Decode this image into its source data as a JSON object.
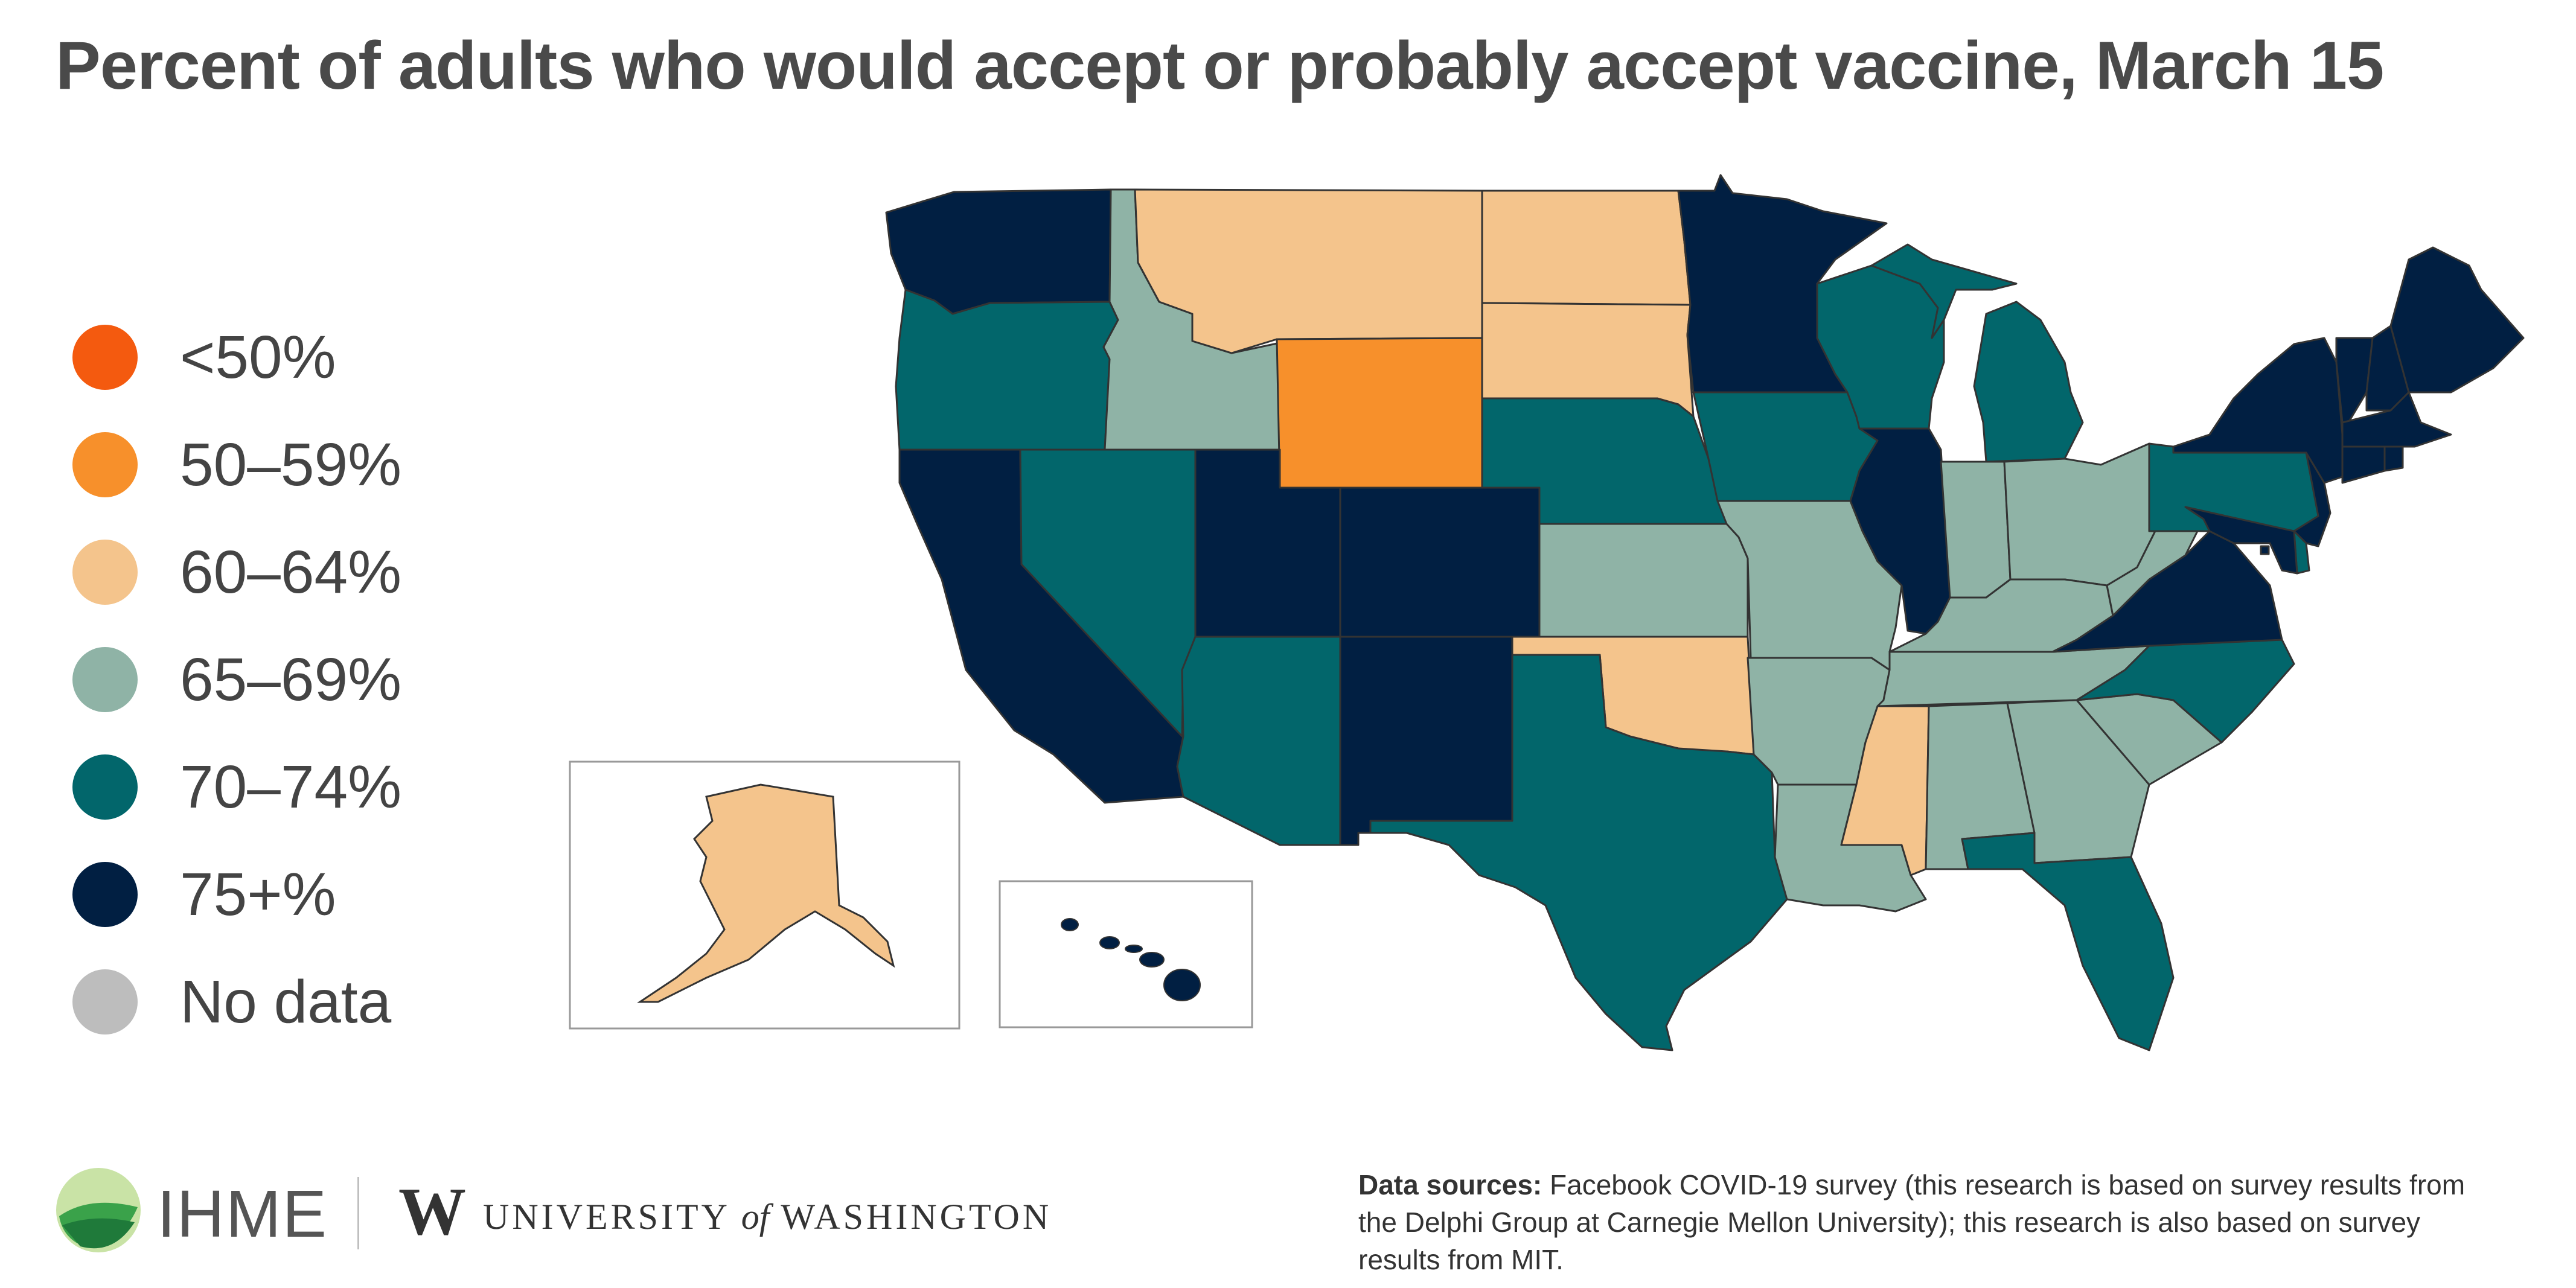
{
  "title": "Percent of adults who would accept or probably accept vaccine, March 15",
  "legend": [
    {
      "label": "<50%",
      "color": "#f45a0f"
    },
    {
      "label": "50–59%",
      "color": "#f7902b"
    },
    {
      "label": "60–64%",
      "color": "#f4c48c"
    },
    {
      "label": "65–69%",
      "color": "#8fb3a6"
    },
    {
      "label": "70–74%",
      "color": "#02666b"
    },
    {
      "label": "75+%",
      "color": "#011f42"
    },
    {
      "label": "No data",
      "color": "#bdbdbd"
    }
  ],
  "map_data": {
    "bins": {
      "lt50": "#f45a0f",
      "50-59": "#f7902b",
      "60-64": "#f4c48c",
      "65-69": "#8fb3a6",
      "70-74": "#02666b",
      "75plus": "#011f42",
      "nodata": "#bdbdbd"
    },
    "states": {
      "WA": "75plus",
      "OR": "70-74",
      "CA": "75plus",
      "NV": "70-74",
      "ID": "65-69",
      "MT": "60-64",
      "WY": "50-59",
      "UT": "75plus",
      "AZ": "70-74",
      "CO": "75plus",
      "NM": "75plus",
      "ND": "60-64",
      "SD": "60-64",
      "NE": "70-74",
      "KS": "65-69",
      "OK": "60-64",
      "TX": "70-74",
      "MN": "75plus",
      "IA": "70-74",
      "MO": "65-69",
      "AR": "65-69",
      "LA": "65-69",
      "WI": "70-74",
      "IL": "75plus",
      "MI": "70-74",
      "IN": "65-69",
      "OH": "65-69",
      "KY": "65-69",
      "TN": "65-69",
      "MS": "60-64",
      "AL": "65-69",
      "GA": "65-69",
      "FL": "70-74",
      "SC": "65-69",
      "NC": "70-74",
      "VA": "75plus",
      "WV": "65-69",
      "PA": "70-74",
      "NY": "75plus",
      "VT": "75plus",
      "NH": "75plus",
      "ME": "75plus",
      "MA": "75plus",
      "RI": "75plus",
      "CT": "75plus",
      "NJ": "75plus",
      "DE": "70-74",
      "MD": "75plus",
      "DC": "75plus",
      "AK": "60-64",
      "HI": "75plus"
    }
  },
  "footer": {
    "ihme": "IHME",
    "uw_w": "W",
    "uw_prefix": "UNIVERSITY",
    "uw_of": "of",
    "uw_suffix": "WASHINGTON",
    "sources_label": "Data sources:",
    "sources_text": "Facebook COVID-19 survey (this research is based on survey results from the Delphi Group at Carnegie Mellon University); this research is also based on survey results from MIT."
  }
}
